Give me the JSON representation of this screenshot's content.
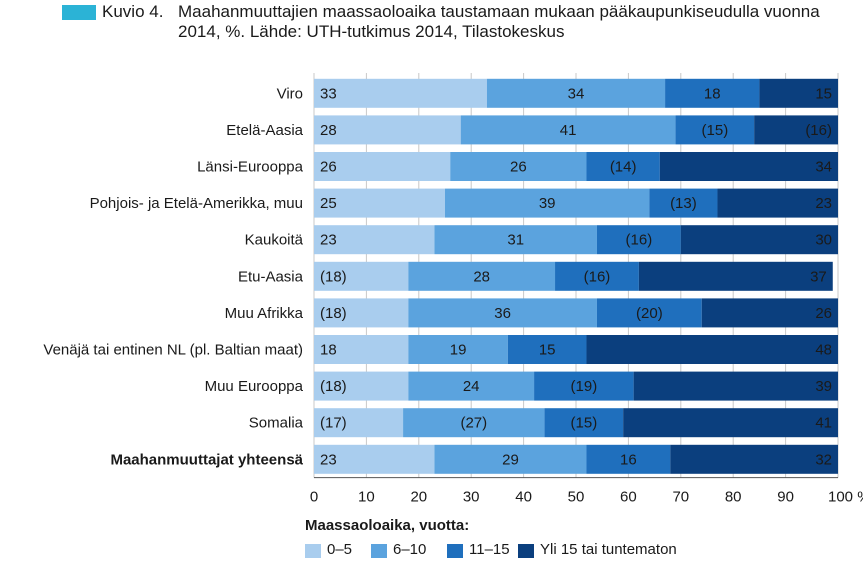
{
  "figure": {
    "prefix": "Kuvio 4.",
    "title": "Maahanmuuttajien maassaoloaika taustamaan mukaan pääkaupunkiseudulla vuonna 2014, %. Lähde: UTH-tutkimus 2014, Tilastokeskus",
    "badge_color": "#2bb3d6"
  },
  "chart_data": {
    "type": "bar",
    "orientation": "horizontal",
    "stacked": true,
    "categories": [
      "Viro",
      "Etelä-Aasia",
      "Länsi-Eurooppa",
      "Pohjois- ja Etelä-Amerikka, muu",
      "Kaukoitä",
      "Etu-Aasia",
      "Muu Afrikka",
      "Venäjä tai entinen NL (pl. Baltian maat)",
      "Muu Eurooppa",
      "Somalia",
      "Maahanmuuttajat yhteensä"
    ],
    "bold_categories": [
      "Maahanmuuttajat yhteensä"
    ],
    "series": [
      {
        "name": "0–5",
        "color": "#a9cdee",
        "values": [
          33,
          28,
          26,
          25,
          23,
          18,
          18,
          18,
          18,
          17,
          23
        ],
        "labels": [
          "33",
          "28",
          "26",
          "25",
          "23",
          "(18)",
          "(18)",
          "18",
          "(18)",
          "(17)",
          "23"
        ]
      },
      {
        "name": "6–10",
        "color": "#5ba3de",
        "values": [
          34,
          41,
          26,
          39,
          31,
          28,
          36,
          19,
          24,
          27,
          29
        ],
        "labels": [
          "34",
          "41",
          "26",
          "39",
          "31",
          "28",
          "36",
          "19",
          "24",
          "(27)",
          "29"
        ]
      },
      {
        "name": "11–15",
        "color": "#1f6fbd",
        "values": [
          18,
          15,
          14,
          13,
          16,
          16,
          20,
          15,
          19,
          15,
          16
        ],
        "labels": [
          "18",
          "(15)",
          "(14)",
          "(13)",
          "(16)",
          "(16)",
          "(20)",
          "15",
          "(19)",
          "(15)",
          "16"
        ]
      },
      {
        "name": "Yli 15 tai tuntematon",
        "color": "#0b3f7e",
        "values": [
          15,
          16,
          34,
          23,
          30,
          37,
          26,
          48,
          39,
          41,
          32
        ],
        "labels": [
          "15",
          "(16)",
          "34",
          "23",
          "30",
          "37",
          "26",
          "48",
          "39",
          "41",
          "32"
        ]
      }
    ],
    "x_ticks": [
      "0",
      "10",
      "20",
      "30",
      "40",
      "50",
      "60",
      "70",
      "80",
      "90",
      "100 %"
    ],
    "xlim": [
      0,
      100
    ],
    "grid": true,
    "legend_title": "Maassaoloaika, vuotta:",
    "legend_position": "bottom"
  }
}
